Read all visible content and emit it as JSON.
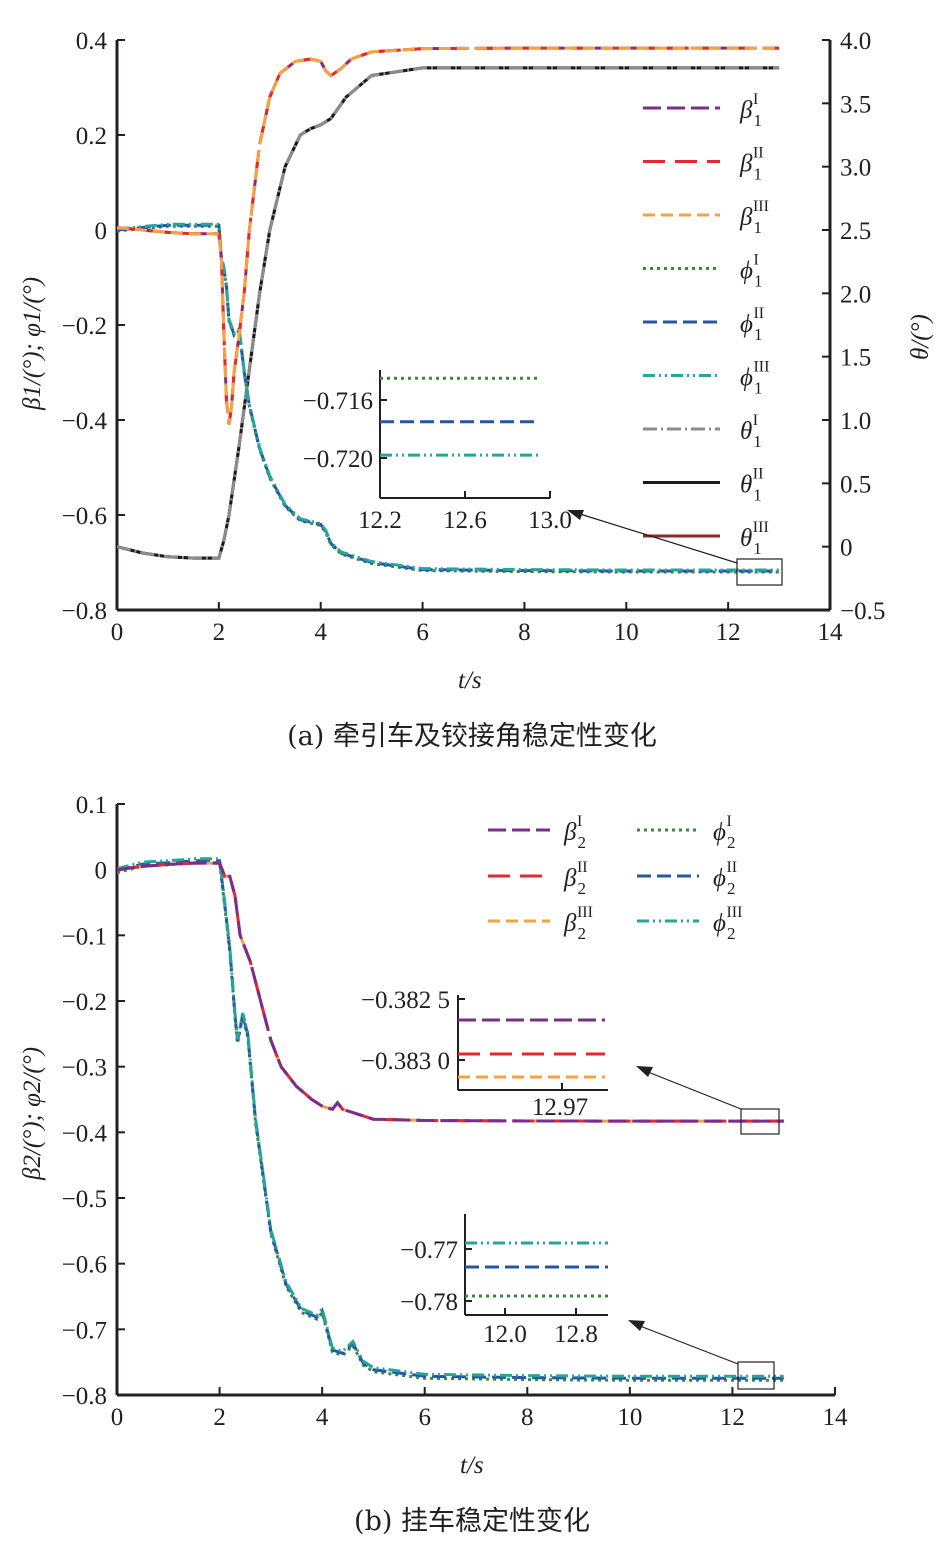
{
  "colors": {
    "purple": "#7b2d8e",
    "red": "#e8262d",
    "orange": "#f4a340",
    "green": "#3a8a3c",
    "blue": "#2556a8",
    "teal": "#26a59a",
    "gray": "#8c8c8c",
    "black": "#1a1a1a",
    "darkred": "#8b2a2a"
  },
  "chart_data": [
    {
      "type": "line",
      "caption": "(a) 牵引车及铰接角稳定性变化",
      "xlabel": "t/s",
      "ylabel_left": "β1/(°); φ1/(°)",
      "ylabel_right": "θ/(°)",
      "xlim": [
        0,
        14
      ],
      "ylim_left": [
        -0.8,
        0.4
      ],
      "ylim_right": [
        -0.5,
        4.0
      ],
      "x_ticks": [
        "0",
        "2",
        "4",
        "6",
        "8",
        "10",
        "12",
        "14"
      ],
      "y_left_ticks": [
        "−0.8",
        "−0.6",
        "−0.4",
        "−0.2",
        "0",
        "0.2",
        "0.4"
      ],
      "y_right_ticks": [
        "−0.5",
        "0",
        "0.5",
        "1.0",
        "1.5",
        "2.0",
        "2.5",
        "3.0",
        "3.5",
        "4.0"
      ],
      "legend": [
        "β1I",
        "β1II",
        "β1III",
        "φ1I",
        "φ1II",
        "φ1III",
        "θ1I",
        "θ1II",
        "θ1III"
      ],
      "series": [
        {
          "name": "β1",
          "axis": "left",
          "x": [
            0,
            0.5,
            1,
            1.5,
            2.0,
            2.05,
            2.1,
            2.15,
            2.2,
            2.25,
            2.3,
            2.4,
            2.5,
            2.6,
            2.8,
            3.0,
            3.2,
            3.5,
            3.8,
            4.0,
            4.1,
            4.2,
            4.4,
            4.6,
            5,
            6,
            8,
            10,
            13
          ],
          "values": [
            0.005,
            0.0,
            -0.005,
            -0.008,
            -0.008,
            -0.06,
            -0.22,
            -0.36,
            -0.41,
            -0.37,
            -0.3,
            -0.22,
            -0.13,
            0.0,
            0.18,
            0.28,
            0.33,
            0.355,
            0.36,
            0.355,
            0.335,
            0.325,
            0.34,
            0.36,
            0.375,
            0.382,
            0.383,
            0.383,
            0.383
          ]
        },
        {
          "name": "φ1",
          "axis": "left",
          "x": [
            0,
            0.5,
            1,
            1.5,
            2.0,
            2.05,
            2.1,
            2.15,
            2.2,
            2.3,
            2.4,
            2.5,
            2.6,
            2.8,
            3.0,
            3.3,
            3.6,
            3.8,
            4.0,
            4.1,
            4.2,
            4.4,
            5,
            6,
            8,
            10,
            13
          ],
          "values": [
            0.0,
            0.005,
            0.01,
            0.01,
            0.01,
            -0.06,
            -0.08,
            -0.12,
            -0.19,
            -0.22,
            -0.21,
            -0.3,
            -0.37,
            -0.46,
            -0.52,
            -0.58,
            -0.61,
            -0.615,
            -0.62,
            -0.635,
            -0.66,
            -0.68,
            -0.7,
            -0.715,
            -0.717,
            -0.718,
            -0.718
          ]
        },
        {
          "name": "θ1",
          "axis": "right",
          "x": [
            0,
            0.5,
            1,
            1.5,
            2.0,
            2.1,
            2.2,
            2.4,
            2.6,
            2.8,
            3.0,
            3.3,
            3.6,
            3.8,
            4.0,
            4.2,
            4.5,
            5,
            6,
            8,
            10,
            13
          ],
          "values": [
            0.0,
            -0.05,
            -0.08,
            -0.09,
            -0.09,
            0.05,
            0.25,
            0.8,
            1.4,
            2.0,
            2.5,
            3.0,
            3.25,
            3.3,
            3.33,
            3.38,
            3.55,
            3.72,
            3.78,
            3.78,
            3.78,
            3.78
          ]
        }
      ],
      "inset": {
        "x_ticks": [
          "12.2",
          "12.6",
          "13.0"
        ],
        "y_ticks": [
          "−0.716",
          "−0.720"
        ],
        "levels": {
          "φ1I": -0.7145,
          "φ1II": -0.7175,
          "φ1III": -0.7198
        }
      }
    },
    {
      "type": "line",
      "caption": "(b) 挂车稳定性变化",
      "xlabel": "t/s",
      "ylabel": "β2/(°); φ2/(°)",
      "xlim": [
        0,
        14
      ],
      "ylim": [
        -0.8,
        0.1
      ],
      "x_ticks": [
        "0",
        "2",
        "4",
        "6",
        "8",
        "10",
        "12",
        "14"
      ],
      "y_ticks": [
        "−0.8",
        "−0.7",
        "−0.6",
        "−0.5",
        "−0.4",
        "−0.3",
        "−0.2",
        "−0.1",
        "0",
        "0.1"
      ],
      "legend": [
        "β2I",
        "β2II",
        "β2III",
        "φ2I",
        "φ2II",
        "φ2III"
      ],
      "series": [
        {
          "name": "β2",
          "x": [
            0,
            0.5,
            1,
            1.5,
            2.0,
            2.1,
            2.2,
            2.3,
            2.4,
            2.6,
            2.8,
            3.0,
            3.2,
            3.5,
            3.8,
            4.0,
            4.2,
            4.3,
            4.4,
            4.6,
            5,
            6,
            8,
            10,
            13
          ],
          "values": [
            0.0,
            0.005,
            0.008,
            0.01,
            0.01,
            -0.01,
            -0.01,
            -0.04,
            -0.1,
            -0.14,
            -0.2,
            -0.26,
            -0.3,
            -0.33,
            -0.35,
            -0.36,
            -0.365,
            -0.355,
            -0.365,
            -0.37,
            -0.38,
            -0.382,
            -0.3828,
            -0.3829,
            -0.3829
          ]
        },
        {
          "name": "φ2",
          "x": [
            0,
            0.5,
            1,
            1.5,
            2.0,
            2.1,
            2.2,
            2.3,
            2.35,
            2.45,
            2.55,
            2.7,
            3.0,
            3.3,
            3.6,
            3.9,
            4.0,
            4.1,
            4.2,
            4.4,
            4.6,
            4.8,
            5,
            6,
            8,
            10,
            13
          ],
          "values": [
            0.0,
            0.01,
            0.012,
            0.015,
            0.015,
            -0.05,
            -0.12,
            -0.22,
            -0.26,
            -0.22,
            -0.25,
            -0.38,
            -0.55,
            -0.63,
            -0.67,
            -0.68,
            -0.67,
            -0.7,
            -0.73,
            -0.735,
            -0.72,
            -0.75,
            -0.76,
            -0.77,
            -0.772,
            -0.773,
            -0.773
          ]
        }
      ],
      "insets": [
        {
          "x_ticks": [
            "12.97"
          ],
          "y_ticks": [
            "−0.382 5",
            "−0.383 0"
          ]
        },
        {
          "x_ticks": [
            "12.0",
            "12.8"
          ],
          "y_ticks": [
            "−0.77",
            "−0.78"
          ]
        }
      ]
    }
  ]
}
